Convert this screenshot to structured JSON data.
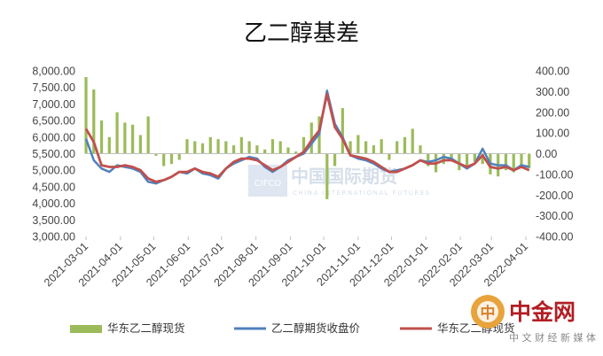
{
  "chart_data": {
    "type": "line",
    "title": "乙二醇基差",
    "xlabel": "",
    "ylabel_left": "",
    "ylabel_right": "",
    "ylim_left": [
      3000,
      8000
    ],
    "ylim_right": [
      -400,
      400
    ],
    "y_left_ticks": [
      "8,000.00",
      "7,500.00",
      "7,000.00",
      "6,500.00",
      "6,000.00",
      "5,500.00",
      "5,000.00",
      "4,500.00",
      "4,000.00",
      "3,500.00",
      "3,000.00"
    ],
    "y_right_ticks": [
      "400.00",
      "300.00",
      "200.00",
      "100.00",
      "0.00",
      "-100.00",
      "-200.00",
      "-300.00",
      "-400.00"
    ],
    "x_ticks": [
      "2021-03-01",
      "2021-04-01",
      "2021-05-01",
      "2021-06-01",
      "2021-07-01",
      "2021-08-01",
      "2021-09-01",
      "2021-10-01",
      "2021-11-01",
      "2021-12-01",
      "2022-01-01",
      "2022-02-01",
      "2022-03-01",
      "2022-04-01"
    ],
    "x_range": [
      "2021-03-01",
      "2022-04-01"
    ],
    "grid": false,
    "legend_position": "bottom",
    "series": [
      {
        "name": "华东乙二醇现货",
        "kind": "bar",
        "axis": "right",
        "color": "#9bbb59",
        "dates": [
          "2021-03-01",
          "2021-03-08",
          "2021-03-15",
          "2021-03-22",
          "2021-03-29",
          "2021-04-05",
          "2021-04-12",
          "2021-04-19",
          "2021-04-26",
          "2021-05-03",
          "2021-05-10",
          "2021-05-17",
          "2021-05-24",
          "2021-05-31",
          "2021-06-07",
          "2021-06-14",
          "2021-06-21",
          "2021-06-28",
          "2021-07-05",
          "2021-07-12",
          "2021-07-19",
          "2021-07-26",
          "2021-08-02",
          "2021-08-09",
          "2021-08-16",
          "2021-08-23",
          "2021-08-30",
          "2021-09-06",
          "2021-09-13",
          "2021-09-20",
          "2021-09-27",
          "2021-10-04",
          "2021-10-11",
          "2021-10-18",
          "2021-10-25",
          "2021-11-01",
          "2021-11-08",
          "2021-11-15",
          "2021-11-22",
          "2021-11-29",
          "2021-12-06",
          "2021-12-13",
          "2021-12-20",
          "2021-12-27",
          "2022-01-03",
          "2022-01-10",
          "2022-01-17",
          "2022-01-24",
          "2022-01-31",
          "2022-02-07",
          "2022-02-14",
          "2022-02-21",
          "2022-02-28",
          "2022-03-07",
          "2022-03-14",
          "2022-03-21",
          "2022-03-28",
          "2022-04-04"
        ],
        "values": [
          370,
          310,
          160,
          80,
          200,
          150,
          140,
          90,
          180,
          -10,
          -60,
          -50,
          -30,
          70,
          60,
          50,
          80,
          70,
          60,
          40,
          80,
          60,
          40,
          20,
          70,
          60,
          30,
          10,
          80,
          150,
          180,
          -220,
          -60,
          220,
          60,
          90,
          60,
          40,
          70,
          -30,
          60,
          80,
          120,
          40,
          -60,
          -90,
          -50,
          -30,
          -80,
          -60,
          -40,
          -50,
          -100,
          -110,
          -80,
          -90,
          -60,
          -70
        ]
      },
      {
        "name": "乙二醇期货收盘价",
        "kind": "line",
        "axis": "left",
        "color": "#4f81bd",
        "dates": [
          "2021-03-01",
          "2021-03-08",
          "2021-03-15",
          "2021-03-22",
          "2021-03-29",
          "2021-04-05",
          "2021-04-12",
          "2021-04-19",
          "2021-04-26",
          "2021-05-03",
          "2021-05-10",
          "2021-05-17",
          "2021-05-24",
          "2021-05-31",
          "2021-06-07",
          "2021-06-14",
          "2021-06-21",
          "2021-06-28",
          "2021-07-05",
          "2021-07-12",
          "2021-07-19",
          "2021-07-26",
          "2021-08-02",
          "2021-08-09",
          "2021-08-16",
          "2021-08-23",
          "2021-08-30",
          "2021-09-06",
          "2021-09-13",
          "2021-09-20",
          "2021-09-27",
          "2021-10-04",
          "2021-10-11",
          "2021-10-18",
          "2021-10-25",
          "2021-11-01",
          "2021-11-08",
          "2021-11-15",
          "2021-11-22",
          "2021-11-29",
          "2021-12-06",
          "2021-12-13",
          "2021-12-20",
          "2021-12-27",
          "2022-01-03",
          "2022-01-10",
          "2022-01-17",
          "2022-01-24",
          "2022-01-31",
          "2022-02-07",
          "2022-02-14",
          "2022-02-21",
          "2022-02-28",
          "2022-03-07",
          "2022-03-14",
          "2022-03-21",
          "2022-03-28",
          "2022-04-04"
        ],
        "values": [
          5950,
          5300,
          5050,
          4950,
          5150,
          5100,
          5050,
          4950,
          4650,
          4600,
          4700,
          4800,
          4950,
          4900,
          5050,
          4900,
          4850,
          4750,
          5050,
          5200,
          5300,
          5400,
          5350,
          5100,
          4950,
          5100,
          5300,
          5400,
          5500,
          5800,
          6100,
          7400,
          6400,
          6000,
          5450,
          5350,
          5300,
          5200,
          5050,
          4950,
          5000,
          5050,
          5150,
          5300,
          5250,
          5300,
          5400,
          5350,
          5200,
          5050,
          5200,
          5650,
          5200,
          5150,
          5150,
          5000,
          5150,
          5100
        ]
      },
      {
        "name": "华东乙二醇现货",
        "kind": "line",
        "axis": "left",
        "color": "#c0504d",
        "dates": [
          "2021-03-01",
          "2021-03-08",
          "2021-03-15",
          "2021-03-22",
          "2021-03-29",
          "2021-04-05",
          "2021-04-12",
          "2021-04-19",
          "2021-04-26",
          "2021-05-03",
          "2021-05-10",
          "2021-05-17",
          "2021-05-24",
          "2021-05-31",
          "2021-06-07",
          "2021-06-14",
          "2021-06-21",
          "2021-06-28",
          "2021-07-05",
          "2021-07-12",
          "2021-07-19",
          "2021-07-26",
          "2021-08-02",
          "2021-08-09",
          "2021-08-16",
          "2021-08-23",
          "2021-08-30",
          "2021-09-06",
          "2021-09-13",
          "2021-09-20",
          "2021-09-27",
          "2021-10-04",
          "2021-10-11",
          "2021-10-18",
          "2021-10-25",
          "2021-11-01",
          "2021-11-08",
          "2021-11-15",
          "2021-11-22",
          "2021-11-29",
          "2021-12-06",
          "2021-12-13",
          "2021-12-20",
          "2021-12-27",
          "2022-01-03",
          "2022-01-10",
          "2022-01-17",
          "2022-01-24",
          "2022-01-31",
          "2022-02-07",
          "2022-02-14",
          "2022-02-21",
          "2022-02-28",
          "2022-03-07",
          "2022-03-14",
          "2022-03-21",
          "2022-03-28",
          "2022-04-04"
        ],
        "values": [
          6250,
          5850,
          5150,
          5100,
          5100,
          5150,
          5100,
          5000,
          4750,
          4650,
          4700,
          4800,
          4950,
          4950,
          5050,
          4950,
          4900,
          4800,
          5050,
          5250,
          5350,
          5350,
          5300,
          5150,
          5000,
          5100,
          5250,
          5400,
          5550,
          5900,
          6200,
          7300,
          6300,
          5950,
          5450,
          5400,
          5350,
          5250,
          5100,
          4950,
          4950,
          5050,
          5150,
          5300,
          5200,
          5200,
          5300,
          5300,
          5200,
          5100,
          5200,
          5450,
          5100,
          5050,
          5100,
          5000,
          5100,
          5000
        ]
      }
    ],
    "watermarks": {
      "cifco_cn": "中国国际期货",
      "cifco_en": "CHINA INTERNATIONAL FUTURES",
      "cifco_badge": "CIFCO",
      "site_logo_glyph": "中",
      "site_name": "中金网",
      "site_tagline": "中文财经新媒体"
    }
  }
}
